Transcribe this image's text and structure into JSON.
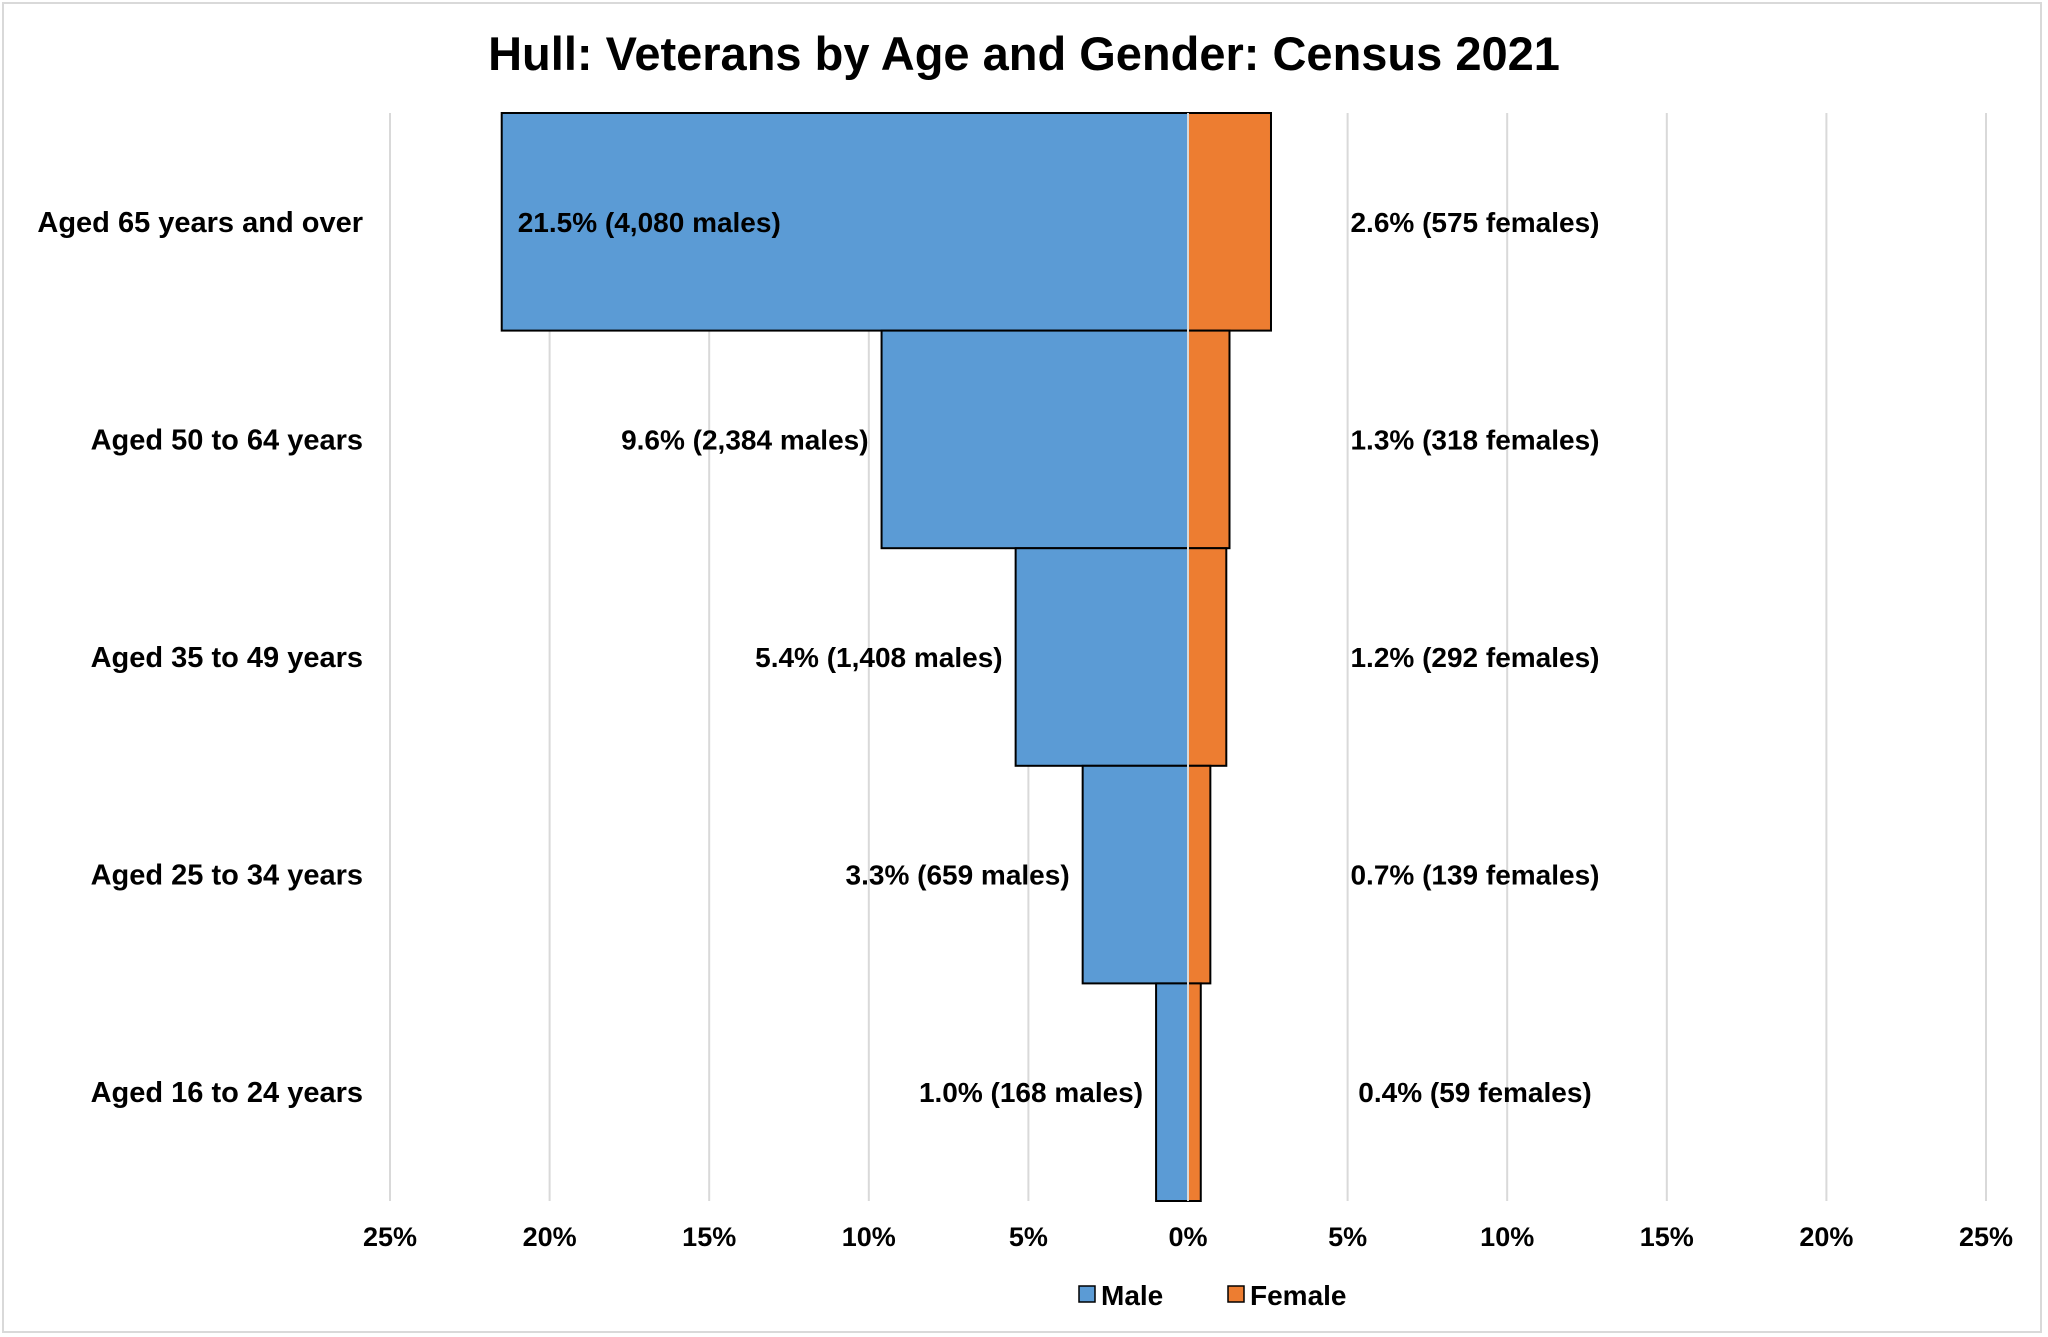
{
  "chart_data": {
    "type": "bar",
    "orientation": "horizontal",
    "layout": "population-pyramid",
    "title": "Hull: Veterans by Age and Gender: Census 2021",
    "categories": [
      "Aged 65 years and over",
      "Aged 50 to 64 years",
      "Aged 35 to 49 years",
      "Aged 25 to 34 years",
      "Aged 16 to 24 years"
    ],
    "series": [
      {
        "name": "Male",
        "color": "#5b9bd5",
        "side": "left",
        "values": [
          21.5,
          9.6,
          5.4,
          3.3,
          1.0
        ],
        "labels": [
          "21.5% (4,080 males)",
          "9.6% (2,384 males)",
          "5.4% (1,408 males)",
          "3.3% (659 males)",
          "1.0% (168 males)"
        ]
      },
      {
        "name": "Female",
        "color": "#ed7d31",
        "side": "right",
        "values": [
          2.6,
          1.3,
          1.2,
          0.7,
          0.4
        ],
        "labels": [
          "2.6% (575 females)",
          "1.3% (318 females)",
          "1.2% (292 females)",
          "0.7% (139 females)",
          "0.4% (59 females)"
        ]
      }
    ],
    "xlim": [
      -25,
      25
    ],
    "xticks": [
      -25,
      -20,
      -15,
      -10,
      -5,
      0,
      5,
      10,
      15,
      20,
      25
    ],
    "xtick_labels": [
      "25%",
      "20%",
      "15%",
      "10%",
      "5%",
      "0%",
      "5%",
      "10%",
      "15%",
      "20%",
      "25%"
    ],
    "grid": true,
    "legend_position": "bottom"
  }
}
